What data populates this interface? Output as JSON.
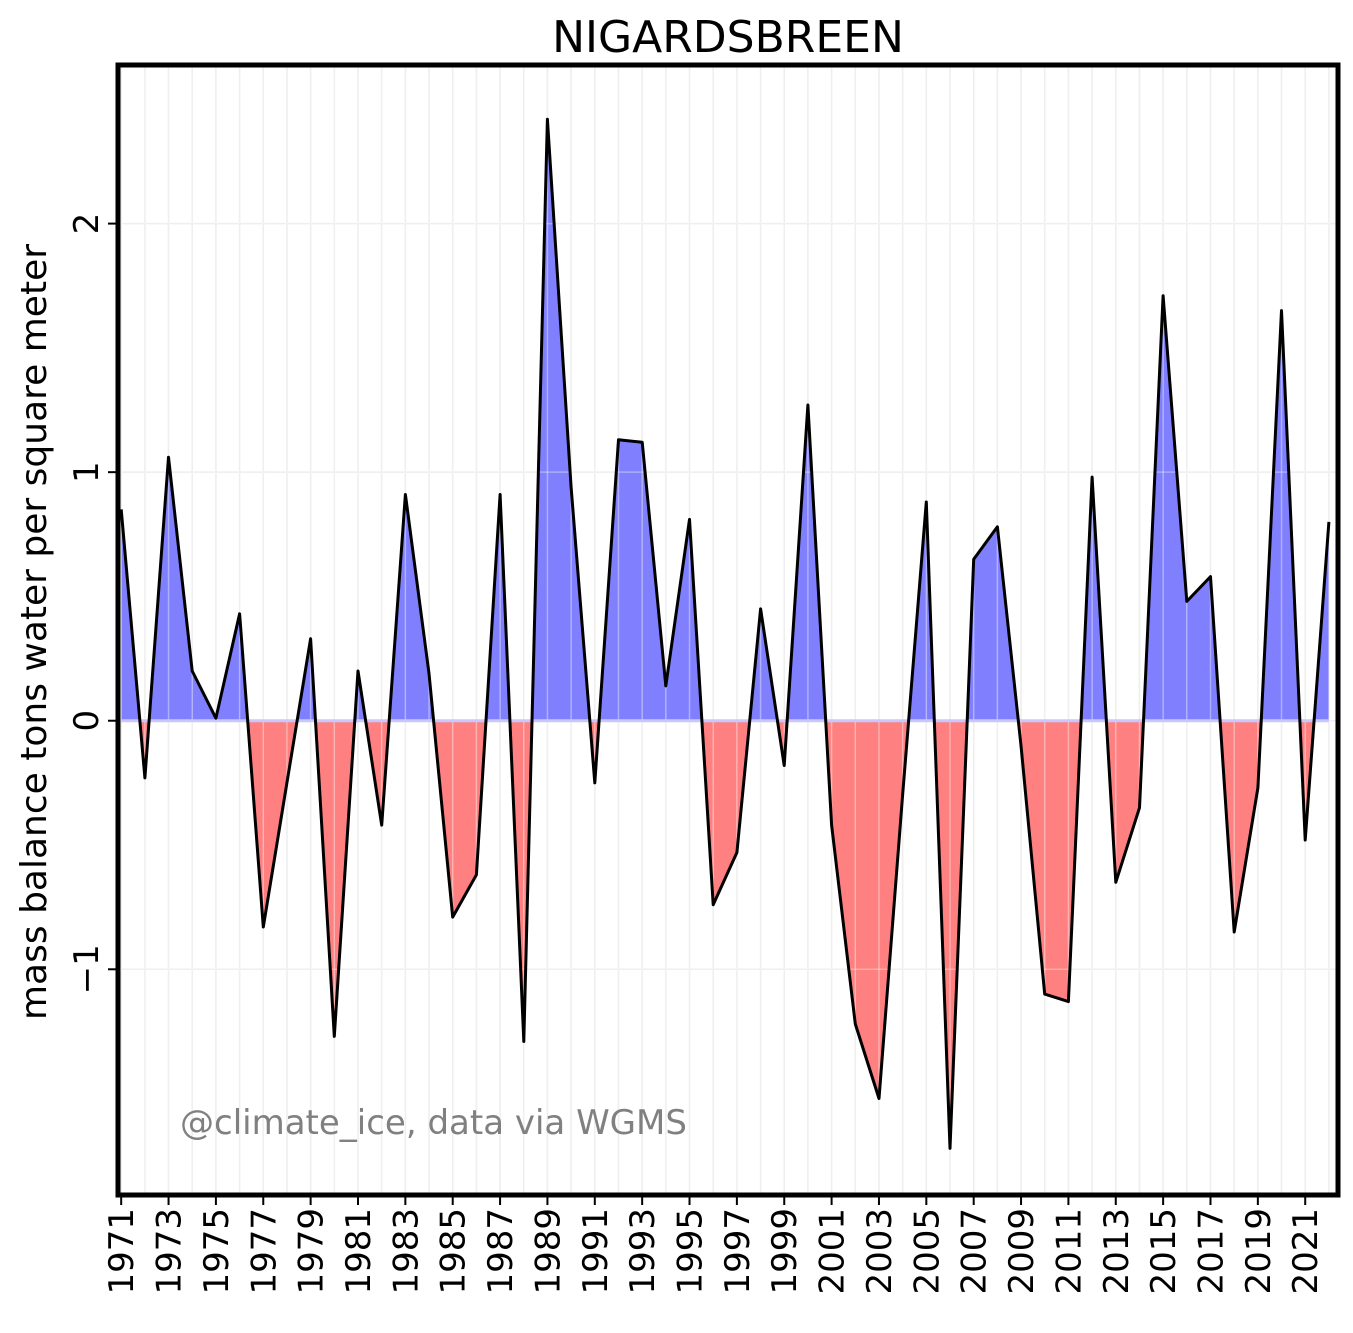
{
  "chart_data": {
    "type": "area",
    "title": "NIGARDSBREEN",
    "ylabel": "mass balance tons water per square meter",
    "xlabel": "",
    "credit": "@climate_ice, data via WGMS",
    "ylim": [
      -1.9,
      2.63
    ],
    "xlim": [
      1970.95,
      2022.3
    ],
    "y_ticks": [
      -1,
      0,
      1,
      2
    ],
    "y_tick_labels": [
      "−1",
      "0",
      "1",
      "2"
    ],
    "x_tick_labels": [
      "1971",
      "1973",
      "1975",
      "1977",
      "1979",
      "1981",
      "1983",
      "1985",
      "1987",
      "1989",
      "1991",
      "1993",
      "1995",
      "1997",
      "1999",
      "2001",
      "2003",
      "2005",
      "2007",
      "2009",
      "2011",
      "2013",
      "2015",
      "2017",
      "2019",
      "2021"
    ],
    "x": [
      1971,
      1972,
      1973,
      1974,
      1975,
      1976,
      1977,
      1978,
      1979,
      1980,
      1981,
      1982,
      1983,
      1984,
      1985,
      1986,
      1987,
      1988,
      1989,
      1990,
      1991,
      1992,
      1993,
      1994,
      1995,
      1996,
      1997,
      1998,
      1999,
      2000,
      2001,
      2002,
      2003,
      2004,
      2005,
      2006,
      2007,
      2008,
      2009,
      2010,
      2011,
      2012,
      2013,
      2014,
      2015,
      2016,
      2017,
      2018,
      2019,
      2020,
      2021,
      2022
    ],
    "values": [
      0.85,
      -0.23,
      1.06,
      0.2,
      0.01,
      0.43,
      -0.83,
      -0.25,
      0.33,
      -1.27,
      0.2,
      -0.42,
      0.91,
      0.19,
      -0.79,
      -0.62,
      0.91,
      -1.29,
      2.42,
      0.94,
      -0.25,
      1.13,
      1.12,
      0.14,
      0.81,
      -0.74,
      -0.53,
      0.45,
      -0.18,
      1.27,
      -0.42,
      -1.22,
      -1.52,
      -0.3,
      0.88,
      -1.72,
      0.65,
      0.78,
      -0.1,
      -1.1,
      -1.13,
      0.98,
      -0.65,
      -0.35,
      1.71,
      0.48,
      0.58,
      -0.85,
      -0.27,
      1.65,
      -0.48,
      0.8
    ],
    "positive_color": "#8080ff",
    "negative_color": "#ff8080",
    "line_color": "#000000",
    "grid": true
  }
}
